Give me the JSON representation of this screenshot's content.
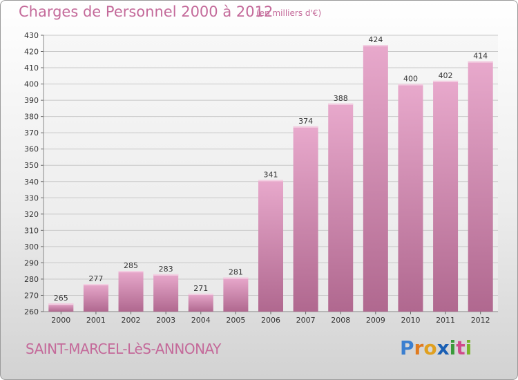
{
  "title": "Charges de Personnel 2000 à 2012",
  "subtitle": "(en milliers d'€)",
  "commune": "SAINT-MARCEL-LèS-ANNONAY",
  "logo": {
    "letters": [
      "P",
      "r",
      "o",
      "x",
      "i",
      "t",
      "i"
    ],
    "colors": [
      "#3b7fd0",
      "#e07b1f",
      "#e0a020",
      "#1a5fb4",
      "#3a9a3a",
      "#d04a8a",
      "#79b52a"
    ]
  },
  "colors": {
    "bar_top": "#e8a9cc",
    "bar_bottom": "#b0688f",
    "grid": "#c8c8c8",
    "text": "#333333",
    "accent": "#c46a9a"
  },
  "chart_data": {
    "type": "bar",
    "title": "Charges de Personnel 2000 à 2012",
    "subtitle": "(en milliers d'€)",
    "categories": [
      "2000",
      "2001",
      "2002",
      "2003",
      "2004",
      "2005",
      "2006",
      "2007",
      "2008",
      "2009",
      "2010",
      "2011",
      "2012"
    ],
    "values": [
      265,
      277,
      285,
      283,
      271,
      281,
      341,
      374,
      388,
      424,
      400,
      402,
      414
    ],
    "ylim": [
      260,
      430
    ],
    "yticks": [
      260,
      270,
      280,
      290,
      300,
      310,
      320,
      330,
      340,
      350,
      360,
      370,
      380,
      390,
      400,
      410,
      420,
      430
    ],
    "grid": true,
    "legend": "none"
  }
}
